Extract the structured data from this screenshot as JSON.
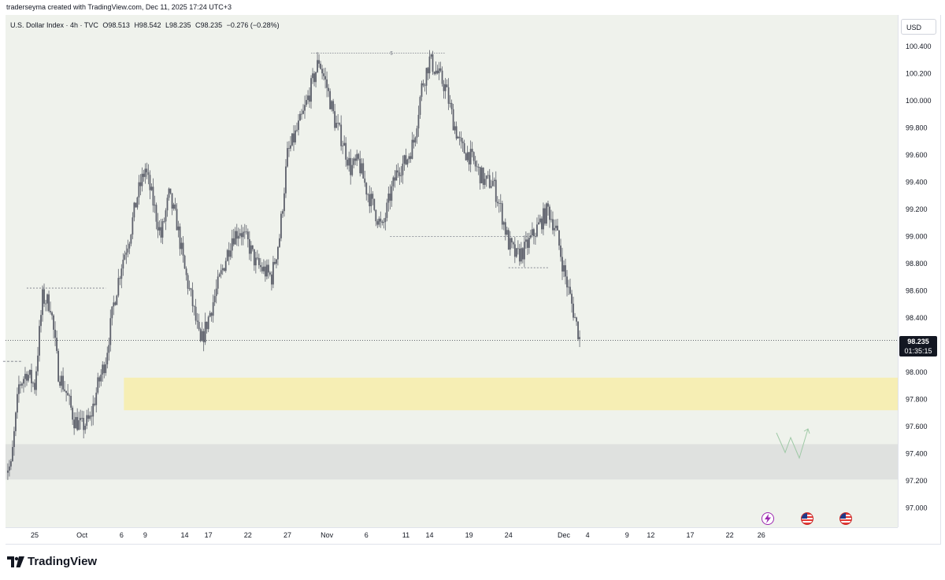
{
  "header": {
    "credit": "traderseyma created with TradingView.com, Dec 11, 2025 17:24 UTC+3"
  },
  "symbol": {
    "name": "U.S. Dollar Index · 4h · TVC",
    "open": "O98.513",
    "high": "H98.542",
    "low": "L98.235",
    "close": "C98.235",
    "change": "−0.276 (−0.28%)"
  },
  "price_axis": {
    "unit": "USD",
    "last_price": "98.235",
    "countdown": "01:35:15"
  },
  "footer": {
    "logo_text": "TradingView"
  },
  "colors": {
    "background": "#eff2ec",
    "candle": "#5d606b",
    "yellow_zone": "#f6eeb4",
    "gray_zone": "#dfe1df",
    "arrow": "#9fc9a6"
  },
  "events": [
    {
      "icon": "lightning-icon",
      "color": "#9c27b0"
    },
    {
      "icon": "us-flag-icon",
      "color": "#e53935"
    },
    {
      "icon": "us-flag-icon",
      "color": "#e53935"
    }
  ],
  "chart_data": {
    "type": "candlestick",
    "ylim": [
      96.8,
      100.5
    ],
    "price_ticks": [
      "100.400",
      "100.200",
      "100.000",
      "99.800",
      "99.600",
      "99.400",
      "99.200",
      "99.000",
      "98.800",
      "98.600",
      "98.400",
      "98.000",
      "97.800",
      "97.600",
      "97.400",
      "97.200",
      "97.000"
    ],
    "price_tick_values": [
      100.4,
      100.2,
      100.0,
      99.8,
      99.6,
      99.4,
      99.2,
      99.0,
      98.8,
      98.6,
      98.4,
      98.0,
      97.8,
      97.6,
      97.4,
      97.2,
      97.0
    ],
    "time_ticks": [
      {
        "label": "25",
        "d": 0
      },
      {
        "label": "Oct",
        "d": 6
      },
      {
        "label": "6",
        "d": 11
      },
      {
        "label": "9",
        "d": 14
      },
      {
        "label": "14",
        "d": 19
      },
      {
        "label": "17",
        "d": 22
      },
      {
        "label": "22",
        "d": 27
      },
      {
        "label": "27",
        "d": 32
      },
      {
        "label": "Nov",
        "d": 37
      },
      {
        "label": "6",
        "d": 42
      },
      {
        "label": "11",
        "d": 47
      },
      {
        "label": "14",
        "d": 50
      },
      {
        "label": "19",
        "d": 55
      },
      {
        "label": "24",
        "d": 60
      },
      {
        "label": "Dec",
        "d": 67
      },
      {
        "label": "4",
        "d": 70
      },
      {
        "label": "9",
        "d": 75
      },
      {
        "label": "12",
        "d": 78
      },
      {
        "label": "17",
        "d": 83
      },
      {
        "label": "22",
        "d": 88
      },
      {
        "label": "26",
        "d": 92
      }
    ],
    "price_path": [
      [
        -4,
        97.3
      ],
      [
        -3,
        97.3
      ],
      [
        -2,
        97.9
      ],
      [
        -1,
        98.0
      ],
      [
        0,
        97.9
      ],
      [
        1,
        98.55
      ],
      [
        2,
        98.5
      ],
      [
        3,
        98.0
      ],
      [
        4,
        97.85
      ],
      [
        5,
        97.65
      ],
      [
        6,
        97.6
      ],
      [
        7,
        97.65
      ],
      [
        8,
        97.9
      ],
      [
        9,
        98.1
      ],
      [
        10,
        98.5
      ],
      [
        11,
        98.8
      ],
      [
        12,
        99.0
      ],
      [
        13,
        99.3
      ],
      [
        14,
        99.5
      ],
      [
        15,
        99.25
      ],
      [
        16,
        99.0
      ],
      [
        17,
        99.3
      ],
      [
        18,
        99.1
      ],
      [
        19,
        98.75
      ],
      [
        20,
        98.5
      ],
      [
        21,
        98.2
      ],
      [
        22,
        98.4
      ],
      [
        23,
        98.6
      ],
      [
        24,
        98.8
      ],
      [
        25,
        99.0
      ],
      [
        26,
        99.05
      ],
      [
        27,
        98.95
      ],
      [
        28,
        98.8
      ],
      [
        29,
        98.75
      ],
      [
        30,
        98.7
      ],
      [
        31,
        99.0
      ],
      [
        32,
        99.6
      ],
      [
        33,
        99.75
      ],
      [
        34,
        99.9
      ],
      [
        35,
        100.1
      ],
      [
        36,
        100.3
      ],
      [
        37,
        100.1
      ],
      [
        38,
        99.85
      ],
      [
        39,
        99.7
      ],
      [
        40,
        99.5
      ],
      [
        41,
        99.55
      ],
      [
        42,
        99.35
      ],
      [
        43,
        99.2
      ],
      [
        44,
        99.05
      ],
      [
        45,
        99.3
      ],
      [
        46,
        99.5
      ],
      [
        47,
        99.55
      ],
      [
        48,
        99.7
      ],
      [
        49,
        100.1
      ],
      [
        50,
        100.3
      ],
      [
        51,
        100.2
      ],
      [
        52,
        100.1
      ],
      [
        53,
        99.85
      ],
      [
        54,
        99.65
      ],
      [
        55,
        99.6
      ],
      [
        56,
        99.5
      ],
      [
        57,
        99.4
      ],
      [
        58,
        99.4
      ],
      [
        59,
        99.2
      ],
      [
        60,
        98.95
      ],
      [
        61,
        98.85
      ],
      [
        62,
        98.9
      ],
      [
        63,
        99.0
      ],
      [
        64,
        99.1
      ],
      [
        65,
        99.2
      ],
      [
        66,
        99.05
      ],
      [
        67,
        98.75
      ],
      [
        68,
        98.5
      ],
      [
        69,
        98.25
      ]
    ],
    "dotted_high": {
      "price": 100.35,
      "from": 35,
      "to": 52
    },
    "dotted_lines": [
      {
        "price": 98.62,
        "from": -1,
        "to": 9
      },
      {
        "price": 99.0,
        "from": 45,
        "to": 63
      },
      {
        "price": 98.77,
        "from": 60,
        "to": 65
      }
    ],
    "left_dashed": {
      "price": 98.08,
      "from": -4,
      "to": -1.5
    },
    "last_price_value": 98.235,
    "yellow_zone": {
      "top": 97.96,
      "bottom": 97.72
    },
    "gray_zone": {
      "top": 97.47,
      "bottom": 97.21
    }
  }
}
